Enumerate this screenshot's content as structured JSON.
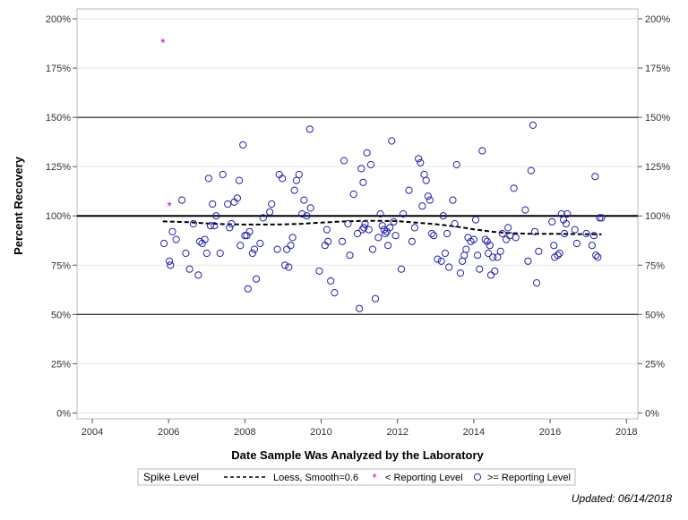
{
  "chart_data": {
    "type": "scatter",
    "xlabel": "Date Sample Was Analyzed by the Laboratory",
    "ylabel": "Percent Recovery",
    "xlim": [
      2003.6,
      2018.3
    ],
    "ylim": [
      -3,
      205
    ],
    "x_ticks": [
      {
        "v": 2004,
        "label": "2004"
      },
      {
        "v": 2006,
        "label": "2006"
      },
      {
        "v": 2008,
        "label": "2008"
      },
      {
        "v": 2010,
        "label": "2010"
      },
      {
        "v": 2012,
        "label": "2012"
      },
      {
        "v": 2014,
        "label": "2014"
      },
      {
        "v": 2016,
        "label": "2016"
      },
      {
        "v": 2018,
        "label": "2018"
      }
    ],
    "y_ticks": [
      {
        "v": 0,
        "label": "0%"
      },
      {
        "v": 25,
        "label": "25%"
      },
      {
        "v": 50,
        "label": "50%"
      },
      {
        "v": 75,
        "label": "75%"
      },
      {
        "v": 100,
        "label": "100%"
      },
      {
        "v": 125,
        "label": "125%"
      },
      {
        "v": 150,
        "label": "150%"
      },
      {
        "v": 175,
        "label": "175%"
      },
      {
        "v": 200,
        "label": "200%"
      }
    ],
    "reference_lines": [
      {
        "y": 100,
        "style": "thick"
      },
      {
        "y": 150,
        "style": "thin"
      },
      {
        "y": 50,
        "style": "thin"
      }
    ],
    "grid": "horizontal",
    "legend_placement": "bottom",
    "legend_title": "Spike Level",
    "series": [
      {
        "name": "Loess, Smoothing=0.6",
        "kind": "line",
        "color": "#000000",
        "x": [
          2005.85,
          2006.5,
          2007,
          2007.5,
          2008,
          2008.5,
          2009,
          2009.5,
          2010,
          2010.5,
          2011,
          2011.5,
          2012,
          2012.5,
          2013,
          2013.5,
          2014,
          2014.5,
          2015,
          2015.5,
          2016,
          2016.5,
          2017,
          2017.35
        ],
        "y": [
          97.2,
          96.8,
          96.2,
          95.8,
          95.6,
          95.6,
          95.7,
          96.0,
          96.6,
          97.1,
          97.4,
          97.5,
          97.3,
          96.6,
          95.8,
          94.7,
          93.2,
          91.9,
          91.2,
          90.9,
          90.9,
          90.8,
          90.7,
          90.7
        ]
      },
      {
        "name": "< Reporting Level",
        "kind": "star",
        "color": "#cc00cc",
        "x": [
          2005.85,
          2006.02
        ],
        "y": [
          188,
          105
        ]
      },
      {
        "name": ">= Reporting Level",
        "kind": "circle",
        "color": "#2222aa",
        "x": [
          2005.88,
          2006.02,
          2006.05,
          2006.1,
          2006.2,
          2006.35,
          2006.45,
          2006.55,
          2006.65,
          2006.78,
          2006.82,
          2006.88,
          2006.95,
          2007.0,
          2007.05,
          2007.1,
          2007.15,
          2007.2,
          2007.25,
          2007.35,
          2007.42,
          2007.55,
          2007.6,
          2007.65,
          2007.72,
          2007.8,
          2007.85,
          2007.88,
          2007.95,
          2008.0,
          2008.05,
          2008.08,
          2008.12,
          2008.2,
          2008.25,
          2008.3,
          2008.4,
          2008.48,
          2008.65,
          2008.7,
          2008.85,
          2008.9,
          2008.98,
          2009.05,
          2009.1,
          2009.15,
          2009.2,
          2009.25,
          2009.3,
          2009.35,
          2009.42,
          2009.5,
          2009.55,
          2009.62,
          2009.7,
          2009.72,
          2009.95,
          2010.1,
          2010.15,
          2010.18,
          2010.25,
          2010.35,
          2010.55,
          2010.6,
          2010.7,
          2010.75,
          2010.85,
          2010.95,
          2011.0,
          2011.05,
          2011.08,
          2011.1,
          2011.12,
          2011.15,
          2011.2,
          2011.25,
          2011.3,
          2011.35,
          2011.42,
          2011.5,
          2011.55,
          2011.6,
          2011.65,
          2011.68,
          2011.72,
          2011.75,
          2011.8,
          2011.85,
          2011.9,
          2011.95,
          2012.1,
          2012.15,
          2012.3,
          2012.38,
          2012.45,
          2012.55,
          2012.6,
          2012.65,
          2012.7,
          2012.75,
          2012.8,
          2012.85,
          2012.9,
          2012.95,
          2013.05,
          2013.15,
          2013.2,
          2013.25,
          2013.3,
          2013.35,
          2013.45,
          2013.5,
          2013.55,
          2013.65,
          2013.7,
          2013.75,
          2013.8,
          2013.85,
          2013.92,
          2014.0,
          2014.05,
          2014.1,
          2014.15,
          2014.22,
          2014.3,
          2014.35,
          2014.38,
          2014.42,
          2014.45,
          2014.5,
          2014.55,
          2014.62,
          2014.7,
          2014.75,
          2014.85,
          2014.9,
          2014.95,
          2015.05,
          2015.1,
          2015.35,
          2015.42,
          2015.5,
          2015.55,
          2015.6,
          2015.65,
          2015.7,
          2016.05,
          2016.1,
          2016.12,
          2016.2,
          2016.25,
          2016.3,
          2016.35,
          2016.38,
          2016.42,
          2016.45,
          2016.65,
          2016.7,
          2016.95,
          2017.1,
          2017.15,
          2017.18,
          2017.2,
          2017.25,
          2017.3,
          2017.35
        ],
        "y": [
          86,
          77,
          75,
          92,
          88,
          108,
          81,
          73,
          96,
          70,
          87,
          86,
          88,
          81,
          119,
          95,
          106,
          95,
          100,
          81,
          121,
          106,
          94,
          96,
          107,
          109,
          118,
          85,
          136,
          90,
          90,
          63,
          92,
          81,
          83,
          68,
          86,
          99,
          102,
          106,
          83,
          121,
          119,
          75,
          83,
          74,
          85,
          89,
          113,
          118,
          121,
          101,
          108,
          100,
          144,
          104,
          72,
          85,
          93,
          87,
          67,
          61,
          87,
          128,
          96,
          80,
          111,
          91,
          53,
          124,
          93,
          117,
          94,
          96,
          132,
          93,
          126,
          83,
          58,
          89,
          101,
          95,
          93,
          91,
          92,
          85,
          94,
          138,
          97,
          90,
          73,
          101,
          113,
          87,
          94,
          129,
          127,
          105,
          121,
          118,
          110,
          108,
          91,
          90,
          78,
          77,
          100,
          81,
          91,
          74,
          108,
          96,
          126,
          71,
          77,
          80,
          83,
          89,
          87,
          88,
          98,
          80,
          73,
          133,
          88,
          87,
          81,
          85,
          70,
          79,
          72,
          79,
          82,
          91,
          88,
          94,
          90,
          114,
          89,
          103,
          77,
          123,
          146,
          92,
          66,
          82,
          97,
          85,
          79,
          80,
          81,
          101,
          98,
          91,
          96,
          101,
          93,
          86,
          91,
          85,
          90,
          120,
          80,
          79,
          99,
          99
        ],
        "size": 8
      }
    ],
    "legend_entries": [
      {
        "label": "Loess, Smooth=0.6",
        "symbol": "dash-line"
      },
      {
        "label": "< Reporting Level",
        "symbol": "star"
      },
      {
        "label": ">= Reporting Level",
        "symbol": "circle"
      }
    ]
  },
  "footer": {
    "updated": "Updated: 06/14/2018"
  }
}
